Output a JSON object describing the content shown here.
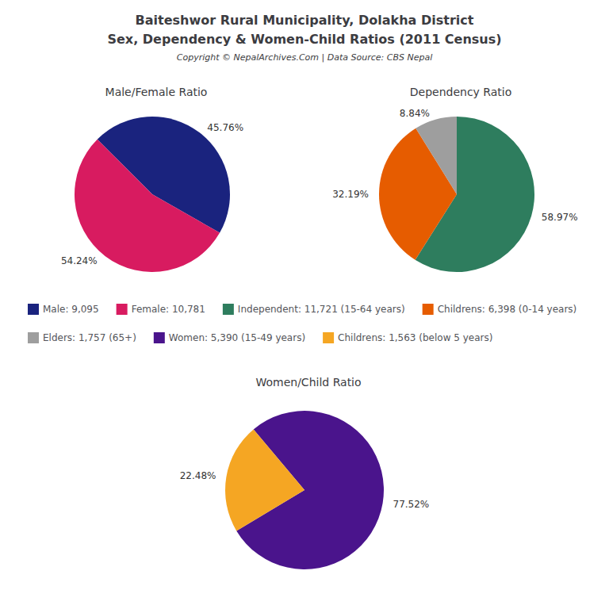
{
  "title": "Baiteshwor Rural Municipality, Dolakha District\nSex, Dependency & Women-Child Ratios (2011 Census)",
  "subtitle": "Copyright © NepalArchives.Com | Data Source: CBS Nepal",
  "chart_data": [
    {
      "type": "pie",
      "title": "Male/Female Ratio",
      "categories": [
        "Male: 9,095",
        "Female: 10,781"
      ],
      "values": [
        45.76,
        54.24
      ],
      "value_labels": [
        "45.76%",
        "54.24%"
      ],
      "colors": [
        "#1a237e",
        "#d81b60"
      ],
      "data_labels": true,
      "legend": "center"
    },
    {
      "type": "pie",
      "title": "Dependency Ratio",
      "categories": [
        "Independent: 11,721 (15-64 years)",
        "Childrens: 6,398 (0-14 years)",
        "Elders: 1,757 (65+)"
      ],
      "values": [
        58.97,
        32.19,
        8.84
      ],
      "value_labels": [
        "58.97%",
        "32.19%",
        "8.84%"
      ],
      "colors": [
        "#2e7d5e",
        "#e65c00",
        "#9e9e9e"
      ],
      "data_labels": true,
      "legend": "center"
    },
    {
      "type": "pie",
      "title": "Women/Child Ratio",
      "categories": [
        "Women: 5,390 (15-49 years)",
        "Childrens: 1,563 (below 5 years)"
      ],
      "values": [
        77.52,
        22.48
      ],
      "value_labels": [
        "77.52%",
        "22.48%"
      ],
      "colors": [
        "#4a148c",
        "#f5a623"
      ],
      "data_labels": true,
      "legend": "center"
    }
  ]
}
